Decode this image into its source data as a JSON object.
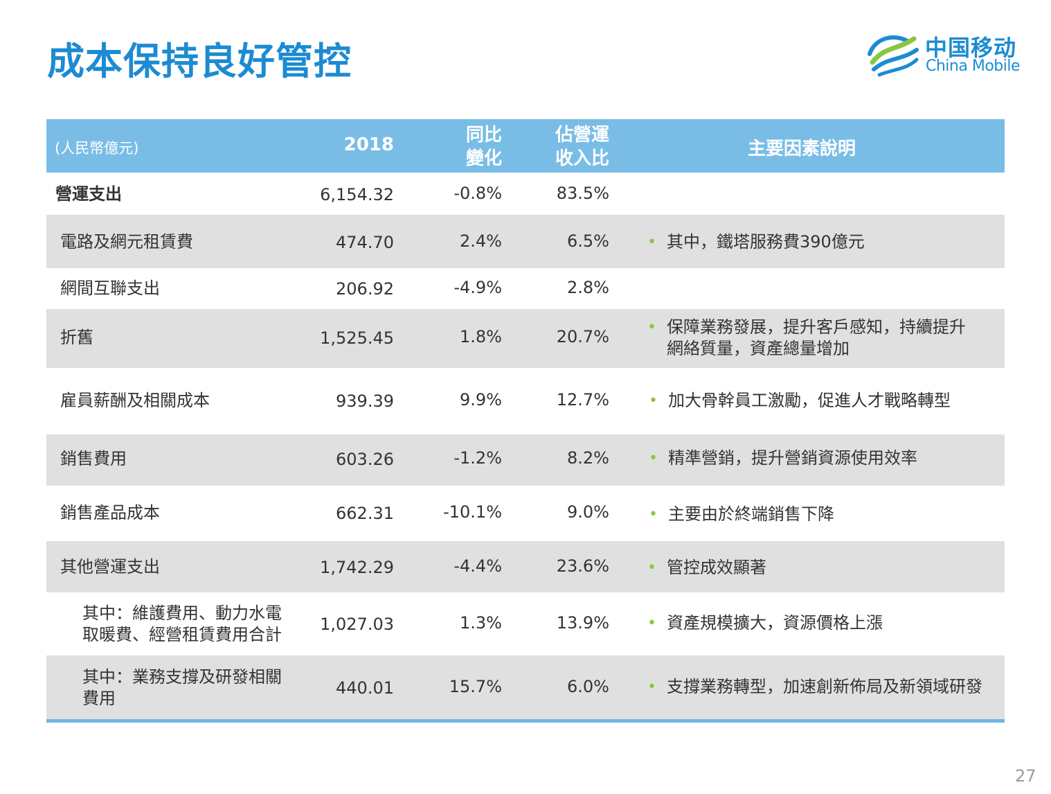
{
  "page": {
    "title": "成本保持良好管控",
    "page_number": "27"
  },
  "logo": {
    "name_cn": "中国移动",
    "name_en": "China Mobile",
    "colors": {
      "blue": "#1c8bd3",
      "green": "#8cc63f"
    }
  },
  "table": {
    "unit": "(人民幣億元)",
    "headers": {
      "year": "2018",
      "yoy_line1": "同比",
      "yoy_line2": "變化",
      "pct_line1": "佔營運",
      "pct_line2": "收入比",
      "desc": "主要因素說明"
    },
    "rows": [
      {
        "name": "營運支出",
        "value": "6,154.32",
        "yoy": "-0.8%",
        "pct": "83.5%",
        "desc": []
      },
      {
        "name": "電路及網元租賃費",
        "value": "474.70",
        "yoy": "2.4%",
        "pct": "6.5%",
        "desc": [
          "其中，鐵塔服務費390億元"
        ]
      },
      {
        "name": "網間互聯支出",
        "value": "206.92",
        "yoy": "-4.9%",
        "pct": "2.8%",
        "desc": []
      },
      {
        "name": "折舊",
        "value": "1,525.45",
        "yoy": "1.8%",
        "pct": "20.7%",
        "desc": [
          "保障業務發展，提升客戶感知，持續提升",
          "網絡質量，資產總量增加"
        ]
      },
      {
        "name": "雇員薪酬及相關成本",
        "value": "939.39",
        "yoy": "9.9%",
        "pct": "12.7%",
        "desc": [
          "加大骨幹員工激勵，促進人才戰略轉型"
        ]
      },
      {
        "name": "銷售費用",
        "value": "603.26",
        "yoy": "-1.2%",
        "pct": "8.2%",
        "desc": [
          "精準營銷，提升營銷資源使用效率"
        ]
      },
      {
        "name": "銷售產品成本",
        "value": "662.31",
        "yoy": "-10.1%",
        "pct": "9.0%",
        "desc": [
          "主要由於終端銷售下降"
        ]
      },
      {
        "name": "其他營運支出",
        "value": "1,742.29",
        "yoy": "-4.4%",
        "pct": "23.6%",
        "desc": [
          "管控成效顯著"
        ]
      },
      {
        "name_lines": [
          "其中：維護費用、動力水電",
          "取暖費、經營租賃費用合計"
        ],
        "value": "1,027.03",
        "yoy": "1.3%",
        "pct": "13.9%",
        "desc": [
          "資產規模擴大，資源價格上漲"
        ]
      },
      {
        "name_lines": [
          "其中：業務支撐及研發相關",
          "費用"
        ],
        "value": "440.01",
        "yoy": "15.7%",
        "pct": "6.0%",
        "desc": [
          "支撐業務轉型，加速創新佈局及新領域研發"
        ]
      }
    ]
  }
}
